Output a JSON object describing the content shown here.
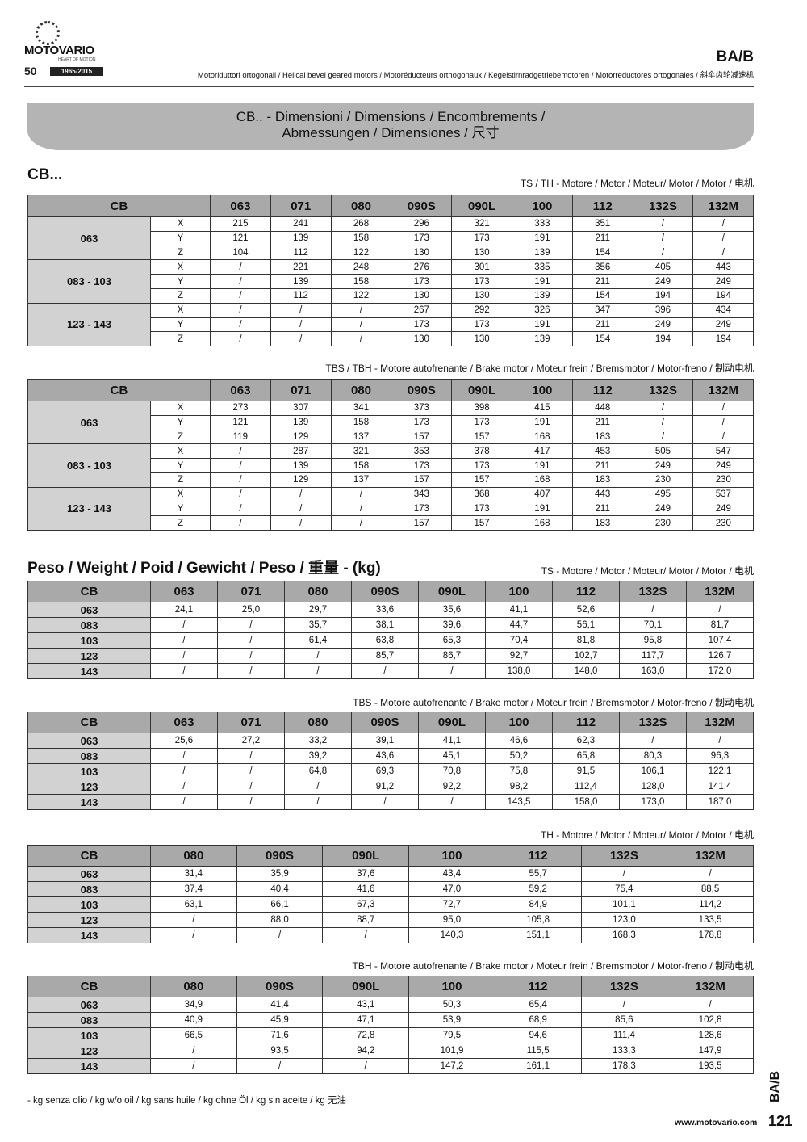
{
  "header": {
    "brand": "MOTOVARIO",
    "tagline": "HEART OF MOTION",
    "anniversary": "50",
    "years": "1965-2015",
    "code": "BA/B",
    "subtitle": "Motoriduttori ortogonali / Helical bevel geared motors / Motoréducteurs orthogonaux / Kegelstirnradgetriebemotoren / Motorreductores ortogonales / 斜伞齿轮减速机"
  },
  "banner": {
    "line1": "CB.. - Dimensioni / Dimensions / Encombrements /",
    "line2": "Abmessungen / Dimensiones / 尺寸"
  },
  "dimensions": {
    "section_title": "CB...",
    "tables": [
      {
        "label": "TS / TH - Motore / Motor / Moteur/ Motor / Motor / 电机",
        "columns": [
          "CB",
          "063",
          "071",
          "080",
          "090S",
          "090L",
          "100",
          "112",
          "132S",
          "132M"
        ],
        "groups": [
          {
            "name": "063",
            "rows": [
              [
                "X",
                "215",
                "241",
                "268",
                "296",
                "321",
                "333",
                "351",
                "/",
                "/"
              ],
              [
                "Y",
                "121",
                "139",
                "158",
                "173",
                "173",
                "191",
                "211",
                "/",
                "/"
              ],
              [
                "Z",
                "104",
                "112",
                "122",
                "130",
                "130",
                "139",
                "154",
                "/",
                "/"
              ]
            ]
          },
          {
            "name": "083 - 103",
            "rows": [
              [
                "X",
                "/",
                "221",
                "248",
                "276",
                "301",
                "335",
                "356",
                "405",
                "443"
              ],
              [
                "Y",
                "/",
                "139",
                "158",
                "173",
                "173",
                "191",
                "211",
                "249",
                "249"
              ],
              [
                "Z",
                "/",
                "112",
                "122",
                "130",
                "130",
                "139",
                "154",
                "194",
                "194"
              ]
            ]
          },
          {
            "name": "123 - 143",
            "rows": [
              [
                "X",
                "/",
                "/",
                "/",
                "267",
                "292",
                "326",
                "347",
                "396",
                "434"
              ],
              [
                "Y",
                "/",
                "/",
                "/",
                "173",
                "173",
                "191",
                "211",
                "249",
                "249"
              ],
              [
                "Z",
                "/",
                "/",
                "/",
                "130",
                "130",
                "139",
                "154",
                "194",
                "194"
              ]
            ]
          }
        ]
      },
      {
        "label": "TBS / TBH - Motore autofrenante / Brake motor / Moteur frein / Bremsmotor / Motor-freno / 制动电机",
        "columns": [
          "CB",
          "063",
          "071",
          "080",
          "090S",
          "090L",
          "100",
          "112",
          "132S",
          "132M"
        ],
        "groups": [
          {
            "name": "063",
            "rows": [
              [
                "X",
                "273",
                "307",
                "341",
                "373",
                "398",
                "415",
                "448",
                "/",
                "/"
              ],
              [
                "Y",
                "121",
                "139",
                "158",
                "173",
                "173",
                "191",
                "211",
                "/",
                "/"
              ],
              [
                "Z",
                "119",
                "129",
                "137",
                "157",
                "157",
                "168",
                "183",
                "/",
                "/"
              ]
            ]
          },
          {
            "name": "083 - 103",
            "rows": [
              [
                "X",
                "/",
                "287",
                "321",
                "353",
                "378",
                "417",
                "453",
                "505",
                "547"
              ],
              [
                "Y",
                "/",
                "139",
                "158",
                "173",
                "173",
                "191",
                "211",
                "249",
                "249"
              ],
              [
                "Z",
                "/",
                "129",
                "137",
                "157",
                "157",
                "168",
                "183",
                "230",
                "230"
              ]
            ]
          },
          {
            "name": "123 - 143",
            "rows": [
              [
                "X",
                "/",
                "/",
                "/",
                "343",
                "368",
                "407",
                "443",
                "495",
                "537"
              ],
              [
                "Y",
                "/",
                "/",
                "/",
                "173",
                "173",
                "191",
                "211",
                "249",
                "249"
              ],
              [
                "Z",
                "/",
                "/",
                "/",
                "157",
                "157",
                "168",
                "183",
                "230",
                "230"
              ]
            ]
          }
        ]
      }
    ]
  },
  "weights": {
    "section_title": "Peso / Weight / Poid / Gewicht / Peso / 重量 - (kg)",
    "tables": [
      {
        "label": "TS - Motore / Motor / Moteur/ Motor / Motor / 电机",
        "columns": [
          "CB",
          "063",
          "071",
          "080",
          "090S",
          "090L",
          "100",
          "112",
          "132S",
          "132M"
        ],
        "rows": [
          [
            "063",
            "24,1",
            "25,0",
            "29,7",
            "33,6",
            "35,6",
            "41,1",
            "52,6",
            "/",
            "/"
          ],
          [
            "083",
            "/",
            "/",
            "35,7",
            "38,1",
            "39,6",
            "44,7",
            "56,1",
            "70,1",
            "81,7"
          ],
          [
            "103",
            "/",
            "/",
            "61,4",
            "63,8",
            "65,3",
            "70,4",
            "81,8",
            "95,8",
            "107,4"
          ],
          [
            "123",
            "/",
            "/",
            "/",
            "85,7",
            "86,7",
            "92,7",
            "102,7",
            "117,7",
            "126,7"
          ],
          [
            "143",
            "/",
            "/",
            "/",
            "/",
            "/",
            "138,0",
            "148,0",
            "163,0",
            "172,0"
          ]
        ]
      },
      {
        "label": "TBS - Motore autofrenante / Brake motor / Moteur frein / Bremsmotor / Motor-freno / 制动电机",
        "columns": [
          "CB",
          "063",
          "071",
          "080",
          "090S",
          "090L",
          "100",
          "112",
          "132S",
          "132M"
        ],
        "rows": [
          [
            "063",
            "25,6",
            "27,2",
            "33,2",
            "39,1",
            "41,1",
            "46,6",
            "62,3",
            "/",
            "/"
          ],
          [
            "083",
            "/",
            "/",
            "39,2",
            "43,6",
            "45,1",
            "50,2",
            "65,8",
            "80,3",
            "96,3"
          ],
          [
            "103",
            "/",
            "/",
            "64,8",
            "69,3",
            "70,8",
            "75,8",
            "91,5",
            "106,1",
            "122,1"
          ],
          [
            "123",
            "/",
            "/",
            "/",
            "91,2",
            "92,2",
            "98,2",
            "112,4",
            "128,0",
            "141,4"
          ],
          [
            "143",
            "/",
            "/",
            "/",
            "/",
            "/",
            "143,5",
            "158,0",
            "173,0",
            "187,0"
          ]
        ]
      },
      {
        "label": "TH - Motore / Motor / Moteur/ Motor / Motor / 电机",
        "columns": [
          "CB",
          "080",
          "090S",
          "090L",
          "100",
          "112",
          "132S",
          "132M"
        ],
        "rows": [
          [
            "063",
            "31,4",
            "35,9",
            "37,6",
            "43,4",
            "55,7",
            "/",
            "/"
          ],
          [
            "083",
            "37,4",
            "40,4",
            "41,6",
            "47,0",
            "59,2",
            "75,4",
            "88,5"
          ],
          [
            "103",
            "63,1",
            "66,1",
            "67,3",
            "72,7",
            "84,9",
            "101,1",
            "114,2"
          ],
          [
            "123",
            "/",
            "88,0",
            "88,7",
            "95,0",
            "105,8",
            "123,0",
            "133,5"
          ],
          [
            "143",
            "/",
            "/",
            "/",
            "140,3",
            "151,1",
            "168,3",
            "178,8"
          ]
        ]
      },
      {
        "label": "TBH - Motore autofrenante / Brake motor / Moteur frein / Bremsmotor / Motor-freno / 制动电机",
        "columns": [
          "CB",
          "080",
          "090S",
          "090L",
          "100",
          "112",
          "132S",
          "132M"
        ],
        "rows": [
          [
            "063",
            "34,9",
            "41,4",
            "43,1",
            "50,3",
            "65,4",
            "/",
            "/"
          ],
          [
            "083",
            "40,9",
            "45,9",
            "47,1",
            "53,9",
            "68,9",
            "85,6",
            "102,8"
          ],
          [
            "103",
            "66,5",
            "71,6",
            "72,8",
            "79,5",
            "94,6",
            "111,4",
            "128,6"
          ],
          [
            "123",
            "/",
            "93,5",
            "94,2",
            "101,9",
            "115,5",
            "133,3",
            "147,9"
          ],
          [
            "143",
            "/",
            "/",
            "/",
            "147,2",
            "161,1",
            "178,3",
            "193,5"
          ]
        ]
      }
    ]
  },
  "footer": {
    "note": "-    kg senza olio / kg w/o oil / kg sans huile / kg ohne Öl / kg sin aceite / kg 无油",
    "code": "BA/B",
    "website": "www.motovario.com",
    "page": "121"
  }
}
